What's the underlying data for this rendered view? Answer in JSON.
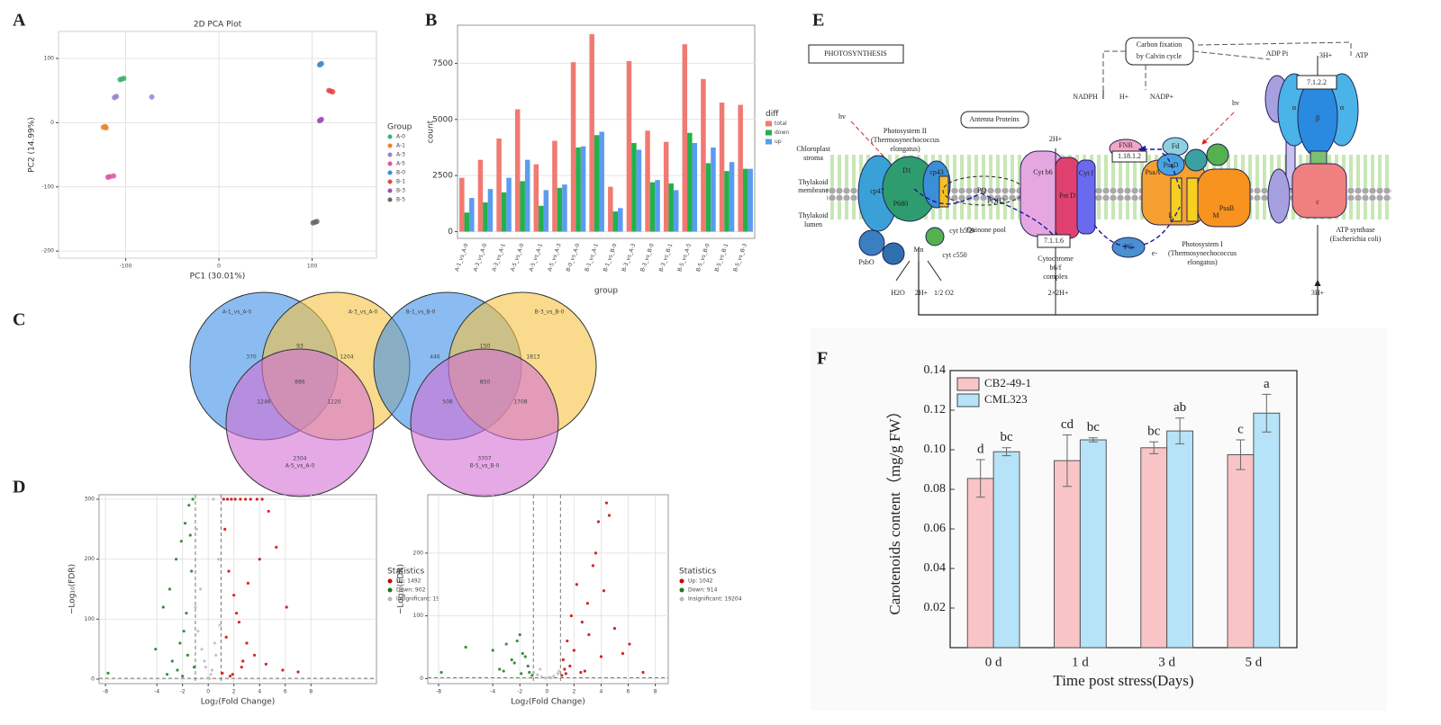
{
  "panel_labels": [
    "A",
    "B",
    "C",
    "D",
    "E",
    "F"
  ],
  "chart_data": [
    {
      "type": "scatter",
      "title": "2D PCA Plot",
      "xlabel": "PC1 (30.01%)",
      "ylabel": "PC2 (14.99%)",
      "xlim": [
        -172,
        169
      ],
      "ylim": [
        -211,
        142
      ],
      "xticks": [
        -100,
        0,
        100
      ],
      "yticks": [
        -200,
        -100,
        0,
        100
      ],
      "grid": true,
      "legend": "right",
      "legend_title": "Group",
      "series": [
        {
          "name": "A-0",
          "color": "#3cb371",
          "x": [
            -106,
            -104,
            -102
          ],
          "y": [
            67,
            68,
            69
          ]
        },
        {
          "name": "A-1",
          "color": "#e8862a",
          "x": [
            -124,
            -122,
            -121
          ],
          "y": [
            -7,
            -6,
            -8
          ]
        },
        {
          "name": "A-3",
          "color": "#9b7fd4",
          "x": [
            -112,
            -110,
            -72
          ],
          "y": [
            39,
            41,
            40
          ]
        },
        {
          "name": "A-5",
          "color": "#e052a8",
          "x": [
            -119,
            -117,
            -113
          ],
          "y": [
            -85,
            -84,
            -83
          ]
        },
        {
          "name": "B-0",
          "color": "#3a8fd6",
          "x": [
            108,
            109,
            110
          ],
          "y": [
            90,
            91,
            92
          ]
        },
        {
          "name": "B-1",
          "color": "#e04848",
          "x": [
            118,
            120,
            122
          ],
          "y": [
            50,
            49,
            48
          ]
        },
        {
          "name": "B-3",
          "color": "#a050c0",
          "x": [
            108,
            109,
            110
          ],
          "y": [
            3,
            4,
            5
          ]
        },
        {
          "name": "B-5",
          "color": "#666666",
          "x": [
            101,
            103,
            105
          ],
          "y": [
            -156,
            -155,
            -154
          ]
        }
      ]
    },
    {
      "type": "bar",
      "xlabel": "group",
      "ylabel": "count",
      "ylim": [
        -300,
        9200
      ],
      "yticks": [
        0,
        2500,
        5000,
        7500
      ],
      "grid": true,
      "legend": "right",
      "legend_title": "diff",
      "categories": [
        "A-1_vs_A-0",
        "A-3_vs_A-0",
        "A-3_vs_A-1",
        "A-5_vs_A-0",
        "A-5_vs_A-1",
        "A-5_vs_A-3",
        "B-0_vs_A-0",
        "B-1_vs_A-1",
        "B-1_vs_B-0",
        "B-3_vs_A-3",
        "B-3_vs_B-0",
        "B-3_vs_B-1",
        "B-5_vs_A-5",
        "B-5_vs_B-0",
        "B-5_vs_B-1",
        "B-5_vs_B-3"
      ],
      "series": [
        {
          "name": "total",
          "color": "#f07a72",
          "values": [
            2400,
            3200,
            4150,
            5450,
            3000,
            4050,
            7550,
            8800,
            2000,
            7600,
            4500,
            4000,
            8350,
            6800,
            5750,
            5650
          ]
        },
        {
          "name": "down",
          "color": "#22b14c",
          "values": [
            850,
            1300,
            1750,
            2250,
            1150,
            1950,
            3750,
            4300,
            900,
            3950,
            2200,
            2150,
            4400,
            3050,
            2700,
            2800
          ]
        },
        {
          "name": "up",
          "color": "#5b9cf0",
          "values": [
            1500,
            1900,
            2400,
            3200,
            1850,
            2100,
            3800,
            4450,
            1050,
            3650,
            2300,
            1850,
            3950,
            3750,
            3100,
            2800
          ]
        }
      ]
    },
    {
      "type": "venn",
      "sets": [
        "A-1_vs_A-0",
        "A-3_vs_A-0",
        "A-5_vs_A-0"
      ],
      "colors": [
        "#3d8fe8",
        "#f7c341",
        "#d46fd6"
      ],
      "values": [
        370,
        93,
        1204,
        1246,
        886,
        1220,
        2304
      ]
    },
    {
      "type": "venn",
      "sets": [
        "B-1_vs_B-0",
        "B-3_vs_B-0",
        "B-5_vs_B-0"
      ],
      "colors": [
        "#3d8fe8",
        "#f7c341",
        "#d46fd6"
      ],
      "values": [
        446,
        150,
        1813,
        508,
        850,
        1708,
        3707
      ]
    },
    {
      "type": "scatter",
      "xlabel": "Log₂(Fold Change)",
      "ylabel": "−Log₁₀(FDR)",
      "xlim": [
        -8.5,
        13.1
      ],
      "ylim": [
        -7.5,
        307.5
      ],
      "xticks": [
        -8,
        -4,
        -2,
        0,
        2,
        4,
        6,
        8
      ],
      "yticks": [
        0,
        100,
        200,
        300
      ],
      "grid": true,
      "threshold_x": [
        -1,
        1
      ],
      "threshold_y": 1.3,
      "legend": "right",
      "legend_title": "Statistics",
      "series": [
        {
          "name": "Up: 1492",
          "color": "#cc0000",
          "x": [
            1.2,
            1.5,
            1.8,
            2.1,
            2.5,
            2.9,
            3.3,
            3.8,
            4.2,
            4.7,
            5.3,
            6.1,
            1.3,
            1.6,
            2.0,
            2.4,
            3.0,
            3.6,
            4.5,
            5.8,
            1.1,
            1.9,
            2.7,
            7.0,
            1.4,
            2.2,
            3.1,
            4.0,
            1.7,
            2.6
          ],
          "y": [
            300,
            300,
            300,
            300,
            300,
            300,
            300,
            300,
            300,
            280,
            220,
            120,
            250,
            180,
            140,
            95,
            60,
            40,
            25,
            15,
            10,
            8,
            30,
            12,
            70,
            110,
            160,
            200,
            5,
            20
          ]
        },
        {
          "name": "Down: 902",
          "color": "#1a7a1a",
          "x": [
            -1.2,
            -1.5,
            -1.8,
            -2.1,
            -2.5,
            -3.0,
            -3.5,
            -1.3,
            -1.7,
            -2.2,
            -2.8,
            -1.1,
            -1.9,
            -2.4,
            -3.2,
            -1.4,
            -2.0,
            -1.6,
            -7.8,
            -4.1
          ],
          "y": [
            300,
            290,
            260,
            230,
            200,
            150,
            120,
            180,
            110,
            60,
            30,
            20,
            80,
            15,
            8,
            240,
            5,
            40,
            10,
            50
          ]
        },
        {
          "name": "Insignificant: 19",
          "color": "#bbbbbb",
          "x": [
            -1.0,
            -0.8,
            -0.5,
            -0.2,
            0,
            0.3,
            0.6,
            0.9,
            -0.6,
            0.2,
            0.5,
            -0.3,
            0.8,
            -0.9,
            0.1,
            0.4
          ],
          "y": [
            120,
            80,
            50,
            20,
            2,
            15,
            40,
            90,
            150,
            8,
            60,
            30,
            200,
            250,
            1,
            300
          ]
        }
      ]
    },
    {
      "type": "scatter",
      "xlabel": "Log₂(Fold Change)",
      "ylabel": "−Log₁₀(FDR)",
      "xlim": [
        -8.8,
        8.96
      ],
      "ylim": [
        -8,
        293
      ],
      "xticks": [
        -8,
        -4,
        -2,
        0,
        2,
        4,
        6,
        8
      ],
      "yticks": [
        0,
        100,
        200
      ],
      "grid": true,
      "threshold_x": [
        -1,
        1
      ],
      "threshold_y": 1.3,
      "legend": "right",
      "legend_title": "Statistics",
      "series": [
        {
          "name": "Up: 1042",
          "color": "#cc0000",
          "x": [
            1.2,
            1.5,
            1.8,
            2.2,
            2.6,
            3.0,
            3.4,
            3.8,
            4.2,
            4.6,
            5.0,
            5.6,
            6.1,
            1.3,
            1.7,
            2.0,
            2.5,
            3.1,
            4.0,
            4.4,
            1.1,
            1.4,
            2.8,
            7.1,
            3.6
          ],
          "y": [
            30,
            60,
            100,
            150,
            90,
            120,
            180,
            250,
            140,
            260,
            80,
            40,
            55,
            15,
            20,
            45,
            10,
            70,
            35,
            280,
            5,
            8,
            12,
            10,
            200
          ]
        },
        {
          "name": "Down: 914",
          "color": "#1a7a1a",
          "x": [
            -1.1,
            -1.4,
            -1.8,
            -2.2,
            -2.6,
            -3.0,
            -3.5,
            -4.0,
            -1.3,
            -1.9,
            -2.4,
            -3.2,
            -2.0,
            -7.8,
            -6.0,
            -1.6
          ],
          "y": [
            5,
            20,
            40,
            60,
            30,
            55,
            15,
            45,
            10,
            8,
            25,
            12,
            70,
            10,
            50,
            35
          ]
        },
        {
          "name": "Insignificant: 19204",
          "color": "#bbbbbb",
          "x": [
            -1.0,
            -0.7,
            -0.4,
            -0.1,
            0.2,
            0.5,
            0.8,
            -0.5,
            0.3,
            0.9
          ],
          "y": [
            10,
            6,
            3,
            1,
            2,
            4,
            8,
            15,
            1,
            12
          ]
        }
      ]
    },
    {
      "type": "bar",
      "xlabel": "Time post stress(Days)",
      "ylabel": "Carotenoids content（mg/g FW）",
      "ylim": [
        0,
        0.14
      ],
      "yticks": [
        0.02,
        0.04,
        0.06,
        0.08,
        {
          "value": 0.1,
          "label": "0.10"
        },
        0.12,
        0.14
      ],
      "grid": false,
      "legend": "upper left",
      "categories": [
        "0 d",
        "1 d",
        "3 d",
        "5 d"
      ],
      "series": [
        {
          "name": "CB2-49-1",
          "color": "#f9c4c6",
          "values": [
            0.0855,
            0.0945,
            0.101,
            0.0975
          ],
          "errors": [
            0.0095,
            0.013,
            0.003,
            0.0075
          ],
          "letters": [
            "d",
            "cd",
            "bc",
            "c"
          ]
        },
        {
          "name": "CML323",
          "color": "#b6e3f7",
          "values": [
            0.099,
            0.105,
            0.1095,
            0.1185
          ],
          "errors": [
            0.002,
            0.001,
            0.0065,
            0.0095
          ],
          "letters": [
            "bc",
            "bc",
            "ab",
            "a"
          ]
        }
      ]
    }
  ],
  "diagram": {
    "labels": [
      "PHOTOSYNTHESIS",
      "Carbon fixation",
      "by Calvin cycle",
      "Antenna Proteins",
      "Photosystem II",
      "(Thermosynechococcus",
      "elongatus)",
      "Chloroplast",
      "stroma",
      "Thylakoid",
      "membrane",
      "Thylakoid",
      "lumen",
      "hv",
      "hv",
      "NADPH",
      "H+",
      "NADP+",
      "ADP Pi",
      "3H+",
      "ATP",
      "7.1.2.2",
      "2H+",
      "Cyt b6",
      "Pet D",
      "Cyt f",
      "FNR",
      "1.18.1.2",
      "Fd",
      "PsaD",
      "PsaA",
      "PsaB",
      "PQ",
      "PQH2",
      "Quinone pool",
      "7.1.1.6",
      "PC",
      "e-",
      "Photosystem I",
      "(Thermosynechococcus",
      "elongatus)",
      "ATP synthase",
      "(Escherichia coli)",
      "cp47",
      "cp43",
      "D1",
      "P680",
      "PsbO",
      "Mn",
      "cyt b559",
      "cyt c550",
      "H2O",
      "2H+",
      "1/2 O2",
      "Cytochrome",
      "b6/f",
      "complex",
      "2×2H+",
      "3H+",
      "α",
      "β",
      "α",
      "c",
      "L",
      "M"
    ]
  }
}
